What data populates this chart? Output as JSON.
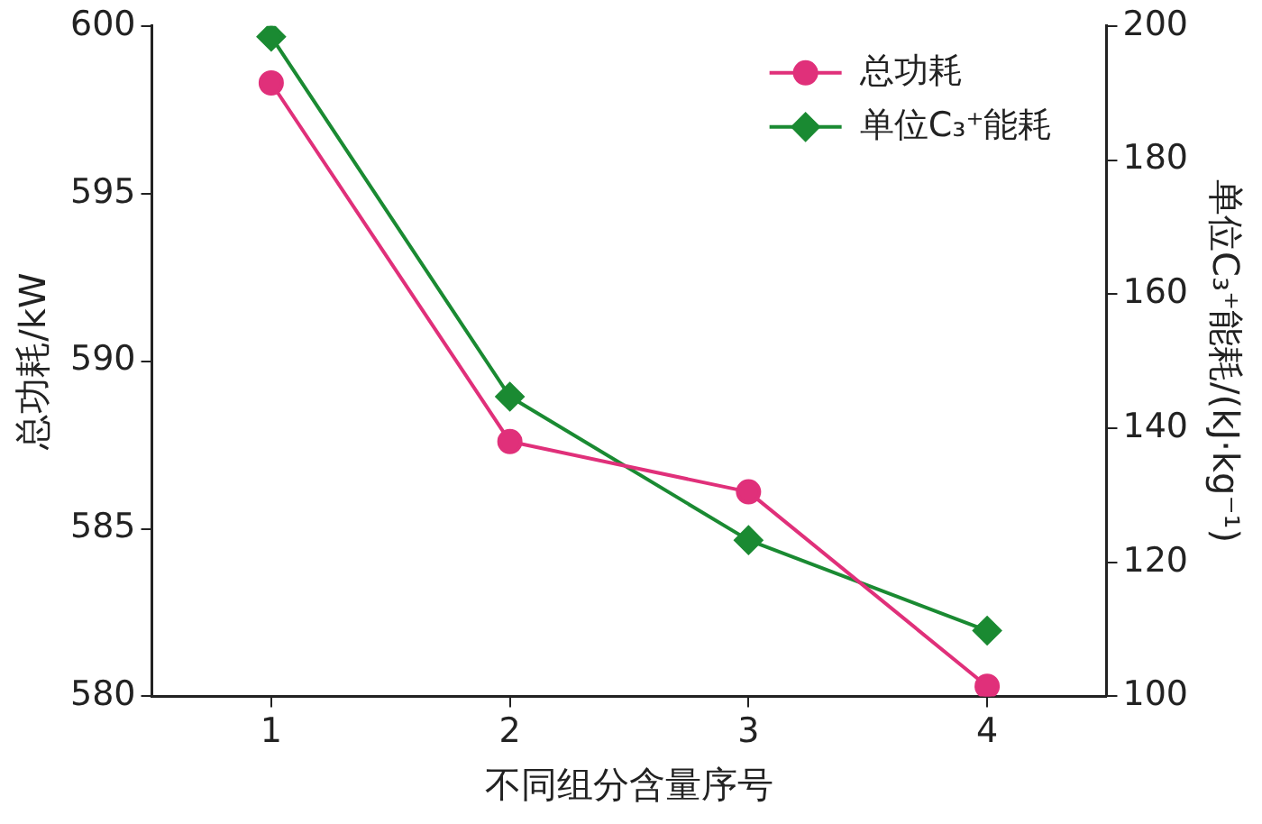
{
  "chart_data": {
    "type": "line",
    "categories": [
      "1",
      "2",
      "3",
      "4"
    ],
    "xlabel": "不同组分含量序号",
    "ylabel": "总功耗/kW",
    "y2label": "单位C₃⁺能耗/(kJ·kg⁻¹)",
    "series": [
      {
        "name": "总功耗",
        "color": "#e0307a",
        "marker": "circle",
        "values": [
          598.3,
          587.6,
          586.1,
          580.3
        ]
      },
      {
        "name": "单位C₃⁺能耗",
        "color": "#1a8a32",
        "marker": "diamond",
        "axis": "y2",
        "values": [
          198.4,
          144.7,
          123.3,
          109.8
        ]
      }
    ],
    "ylim": [
      580,
      600
    ],
    "yticks": [
      580,
      585,
      590,
      595,
      600
    ],
    "y2lim": [
      100,
      200
    ],
    "y2ticks": [
      100,
      120,
      140,
      160,
      180,
      200
    ],
    "legend": "top right",
    "grid": false
  }
}
